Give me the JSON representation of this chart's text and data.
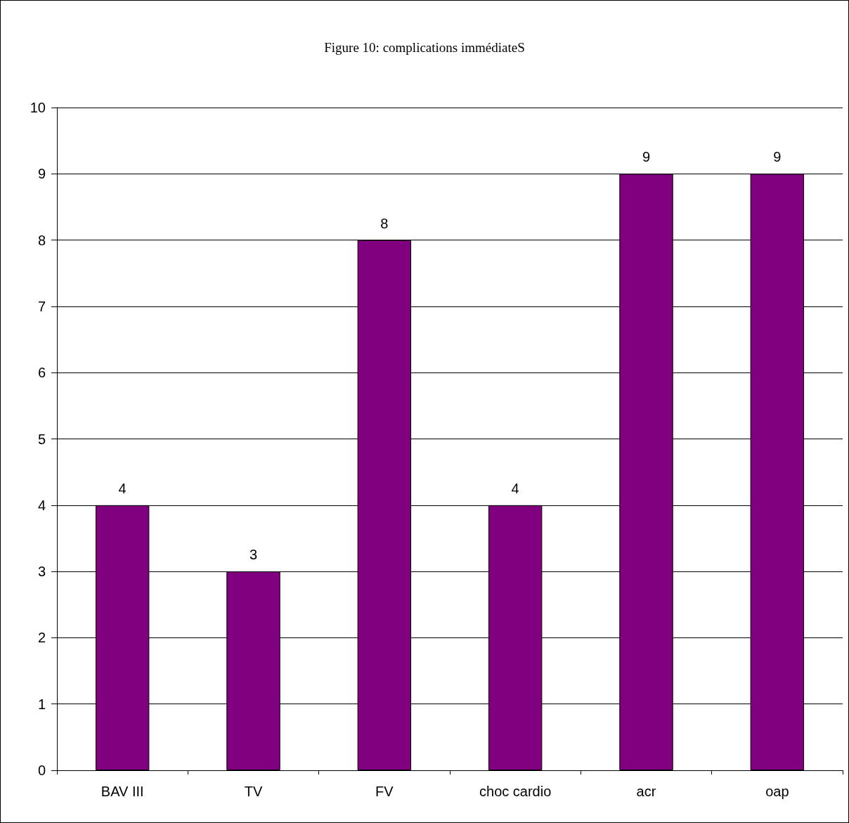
{
  "chart_data": {
    "type": "bar",
    "title": "Figure 10: complications immédiateS",
    "categories": [
      "BAV III",
      "TV",
      "FV",
      "choc cardio",
      "acr",
      "oap"
    ],
    "values": [
      4,
      3,
      8,
      4,
      9,
      9
    ],
    "color": "#800080",
    "ylim": [
      0,
      10
    ],
    "yticks": [
      0,
      1,
      2,
      3,
      4,
      5,
      6,
      7,
      8,
      9,
      10
    ],
    "grid": "y",
    "data_labels": true
  }
}
